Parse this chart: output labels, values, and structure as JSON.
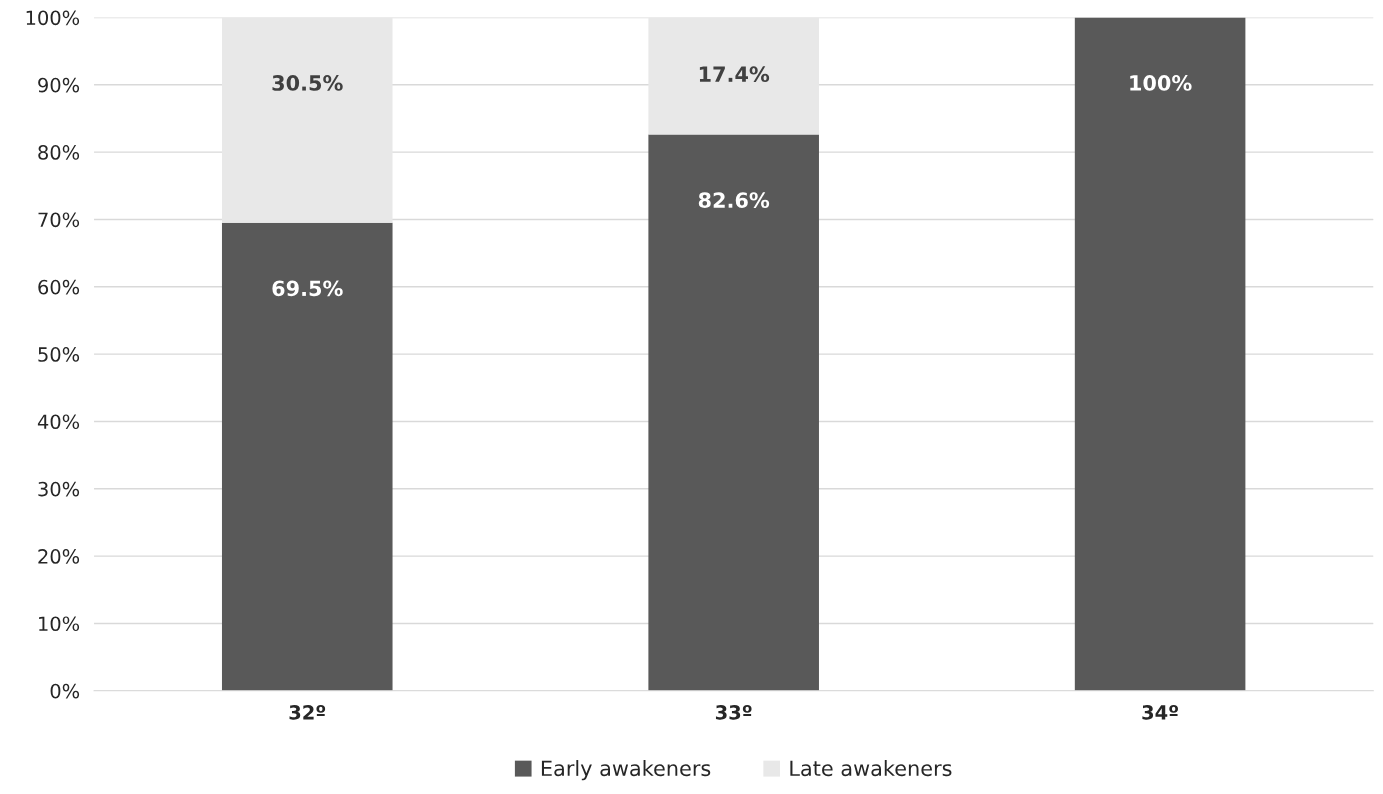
{
  "chart_data": {
    "type": "bar",
    "stacked": true,
    "categories": [
      "32º",
      "33º",
      "34º"
    ],
    "series": [
      {
        "name": "Early awakeners",
        "color": "#595959",
        "values": [
          69.5,
          82.6,
          100
        ],
        "value_labels": [
          "69.5%",
          "82.6%",
          "100%"
        ]
      },
      {
        "name": "Late awakeners",
        "color": "#e8e8e8",
        "values": [
          30.5,
          17.4,
          null
        ],
        "value_labels": [
          "30.5%",
          "17.4%",
          null
        ]
      }
    ],
    "ylim": [
      0,
      100
    ],
    "yticks": [
      {
        "value": 0,
        "label": "0%"
      },
      {
        "value": 10,
        "label": "10%"
      },
      {
        "value": 20,
        "label": "20%"
      },
      {
        "value": 30,
        "label": "30%"
      },
      {
        "value": 40,
        "label": "40%"
      },
      {
        "value": 50,
        "label": "50%"
      },
      {
        "value": 60,
        "label": "60%"
      },
      {
        "value": 70,
        "label": "70%"
      },
      {
        "value": 80,
        "label": "80%"
      },
      {
        "value": 90,
        "label": "90%"
      },
      {
        "value": 100,
        "label": "100%"
      }
    ],
    "grid": "y",
    "legend": "bottom"
  }
}
